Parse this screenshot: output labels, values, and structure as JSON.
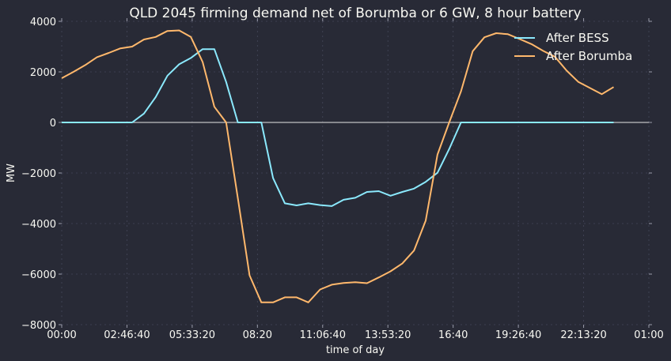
{
  "chart_data": {
    "type": "line",
    "title": "QLD 2045 firming demand net of Borumba or 6 GW, 8 hour battery",
    "xlabel": "time of day",
    "ylabel": "MW",
    "x_unit": "hours",
    "xlim": [
      0,
      25
    ],
    "ylim": [
      -8000,
      4000
    ],
    "xticks": [
      {
        "value": 0,
        "label": "00:00"
      },
      {
        "value": 2.7778,
        "label": "02:46:40"
      },
      {
        "value": 5.5556,
        "label": "05:33:20"
      },
      {
        "value": 8.3333,
        "label": "08:20"
      },
      {
        "value": 11.1111,
        "label": "11:06:40"
      },
      {
        "value": 13.8889,
        "label": "13:53:20"
      },
      {
        "value": 16.6667,
        "label": "16:40"
      },
      {
        "value": 19.4444,
        "label": "19:26:40"
      },
      {
        "value": 22.2222,
        "label": "22:13:20"
      },
      {
        "value": 25,
        "label": "01:00"
      }
    ],
    "yticks": [
      {
        "value": 4000,
        "label": "4000"
      },
      {
        "value": 2000,
        "label": "2000"
      },
      {
        "value": 0,
        "label": "0"
      },
      {
        "value": -2000,
        "label": "−2000"
      },
      {
        "value": -4000,
        "label": "−4000"
      },
      {
        "value": -6000,
        "label": "−6000"
      },
      {
        "value": -8000,
        "label": "−8000"
      }
    ],
    "grid": true,
    "zero_line": true,
    "legend_position": "top-right",
    "x": [
      0,
      0.5,
      1,
      1.5,
      2,
      2.5,
      3,
      3.5,
      4,
      4.5,
      5,
      5.5,
      6,
      6.5,
      7,
      7.5,
      8,
      8.5,
      9,
      9.5,
      10,
      10.5,
      11,
      11.5,
      12,
      12.5,
      13,
      13.5,
      14,
      14.5,
      15,
      15.5,
      16,
      16.5,
      17,
      17.5,
      18,
      18.5,
      19,
      19.5,
      20,
      20.5,
      21,
      21.5,
      22,
      22.5,
      23,
      23.5
    ],
    "series": [
      {
        "name": "After BESS",
        "color": "#8be9fd",
        "values": [
          0,
          0,
          0,
          0,
          0,
          0,
          0,
          350,
          1000,
          1850,
          2300,
          2550,
          2900,
          2900,
          1600,
          0,
          0,
          0,
          -2200,
          -3200,
          -3280,
          -3200,
          -3270,
          -3310,
          -3060,
          -2980,
          -2750,
          -2720,
          -2900,
          -2750,
          -2620,
          -2350,
          -1990,
          -1050,
          0,
          0,
          0,
          0,
          0,
          0,
          0,
          0,
          0,
          0,
          0,
          0,
          0,
          0
        ]
      },
      {
        "name": "After Borumba",
        "color": "#ffb86c",
        "values": [
          1750,
          2000,
          2270,
          2580,
          2750,
          2930,
          3000,
          3280,
          3380,
          3620,
          3640,
          3380,
          2390,
          620,
          0,
          -3000,
          -6050,
          -7120,
          -7120,
          -6920,
          -6920,
          -7120,
          -6610,
          -6420,
          -6350,
          -6320,
          -6360,
          -6130,
          -5890,
          -5580,
          -5070,
          -3880,
          -1270,
          0,
          1230,
          2820,
          3370,
          3530,
          3490,
          3300,
          3100,
          2830,
          2600,
          2050,
          1600,
          1360,
          1120,
          1400
        ]
      }
    ]
  }
}
